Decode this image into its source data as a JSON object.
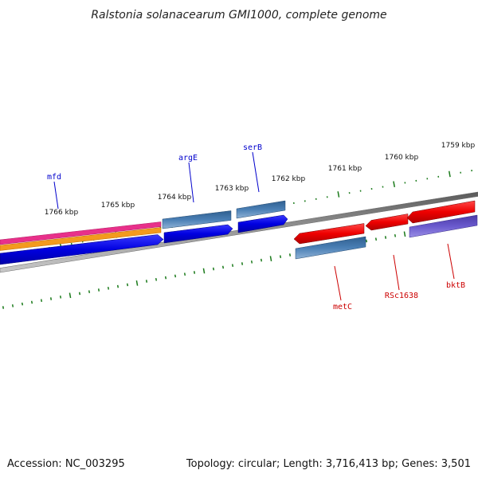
{
  "title": "Ralstonia solanacearum GMI1000, complete genome",
  "footer": {
    "accession": "Accession: NC_003295",
    "summary": "Topology: circular; Length: 3,716,413 bp; Genes: 3,501"
  },
  "colors": {
    "background": "#ffffff",
    "backbone": "#8c8c8c",
    "tick": "#1a7a1a",
    "forward_label": "#0000cc",
    "reverse_label": "#cc0000",
    "cds_forward": "#0000ee",
    "cds_reverse": "#ee0000",
    "rna_like": "#4a7fb5",
    "misc_pink": "#e8308a",
    "misc_orange": "#f39a1e",
    "misc_purple": "#6a5acd"
  },
  "ruler": {
    "unit": "kbp",
    "labels": [
      "1759 kbp",
      "1760 kbp",
      "1761 kbp",
      "1762 kbp",
      "1763 kbp",
      "1764 kbp",
      "1765 kbp",
      "1766 kbp"
    ]
  },
  "genes": {
    "forward": [
      "mfd",
      "argE",
      "serB"
    ],
    "reverse": [
      "metC",
      "RSc1638",
      "bktB"
    ]
  }
}
